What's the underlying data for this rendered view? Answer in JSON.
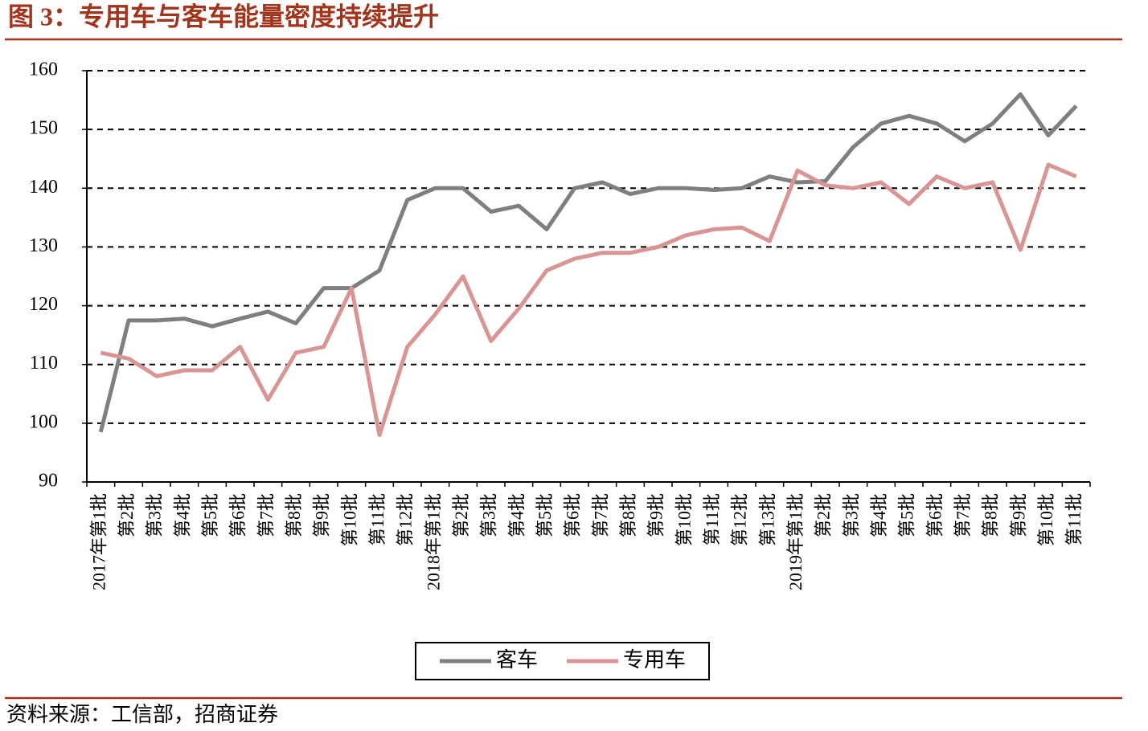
{
  "chart_data": {
    "type": "line",
    "title": "图 3：专用车与客车能量密度持续提升",
    "source": "资料来源：工信部，招商证券",
    "categories": [
      "2017年第1批",
      "第2批",
      "第3批",
      "第4批",
      "第5批",
      "第6批",
      "第7批",
      "第8批",
      "第9批",
      "第10批",
      "第11批",
      "第12批",
      "2018年第1批",
      "第2批",
      "第3批",
      "第4批",
      "第5批",
      "第6批",
      "第7批",
      "第8批",
      "第9批",
      "第10批",
      "第11批",
      "第12批",
      "第13批",
      "2019年第1批",
      "第2批",
      "第3批",
      "第4批",
      "第5批",
      "第6批",
      "第7批",
      "第8批",
      "第9批",
      "第10批",
      "第11批"
    ],
    "series": [
      {
        "name": "客车",
        "color": "#7f7f7f",
        "values": [
          98.5,
          117.5,
          117.5,
          117.8,
          116.5,
          117.8,
          119,
          117,
          123,
          123,
          126,
          138,
          140,
          140,
          136,
          137,
          133,
          140,
          141,
          139,
          140,
          140,
          139.7,
          140,
          142,
          141,
          141.2,
          147,
          151,
          152.3,
          151,
          148,
          151,
          156,
          149,
          154
        ]
      },
      {
        "name": "专用车",
        "color": "#d99594",
        "values": [
          112,
          111,
          108,
          109,
          109,
          113,
          104,
          112,
          113,
          123,
          98,
          113,
          118.5,
          125,
          114,
          119.5,
          126,
          128,
          129,
          129,
          130,
          132,
          133,
          133.3,
          131,
          143,
          140.5,
          140,
          141,
          137.3,
          142,
          140,
          141,
          129.5,
          144,
          142
        ]
      }
    ],
    "ylim": [
      90,
      160
    ],
    "yticks": [
      90,
      100,
      110,
      120,
      130,
      140,
      150,
      160
    ],
    "grid": true,
    "legend": "bottom"
  }
}
